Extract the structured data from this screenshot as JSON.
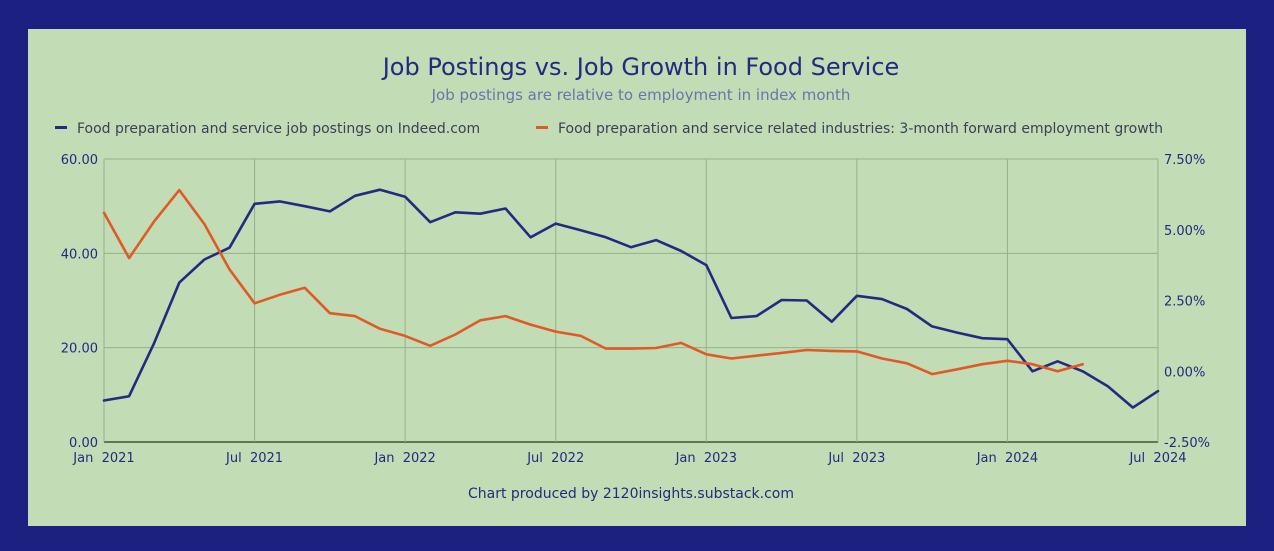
{
  "chart_data": {
    "type": "line",
    "title": "Job Postings vs. Job Growth in Food Service",
    "subtitle": "Job postings are relative to employment in index month",
    "footer": "Chart produced by 2120insights.substack.com",
    "x_ticks": [
      "Jan  2021",
      "Jul  2021",
      "Jan  2022",
      "Jul  2022",
      "Jan  2023",
      "Jul  2023",
      "Jan  2024",
      "Jul  2024"
    ],
    "y_left": {
      "ylim": [
        0,
        60
      ],
      "ticks": [
        "0.00",
        "20.00",
        "40.00",
        "60.00"
      ]
    },
    "y_right": {
      "ylim": [
        -2.5,
        7.5
      ],
      "ticks": [
        "-2.50%",
        "0.00%",
        "2.50%",
        "5.00%",
        "7.50%"
      ]
    },
    "series": [
      {
        "name": "Food preparation and service job postings on Indeed.com",
        "color": "#252a80",
        "axis": "left",
        "start_month_index": 0,
        "values": [
          8.8,
          9.7,
          21.0,
          33.8,
          38.7,
          41.2,
          50.5,
          51.0,
          50.0,
          48.9,
          52.2,
          53.5,
          52.0,
          46.6,
          48.7,
          48.4,
          49.5,
          43.4,
          46.3,
          44.9,
          43.4,
          41.3,
          42.8,
          40.5,
          37.5,
          26.3,
          26.7,
          30.1,
          30.0,
          25.5,
          31.0,
          30.3,
          28.2,
          24.5,
          23.2,
          22.0,
          21.8,
          15.0,
          17.1,
          15.0,
          11.8,
          7.3,
          10.8
        ]
      },
      {
        "name": "Food preparation and service related industries: 3-month forward employment growth",
        "color": "#e05a27",
        "axis": "right",
        "start_month_index": 0,
        "values": [
          5.6,
          4.0,
          5.3,
          6.4,
          5.2,
          3.6,
          2.4,
          2.7,
          2.95,
          2.05,
          1.95,
          1.5,
          1.25,
          0.9,
          1.3,
          1.8,
          1.95,
          1.65,
          1.4,
          1.25,
          0.8,
          0.8,
          0.82,
          1.0,
          0.6,
          0.45,
          0.55,
          0.65,
          0.75,
          0.72,
          0.7,
          0.45,
          0.28,
          -0.1,
          0.07,
          0.25,
          0.37,
          0.25,
          0.0,
          0.25
        ]
      }
    ]
  }
}
